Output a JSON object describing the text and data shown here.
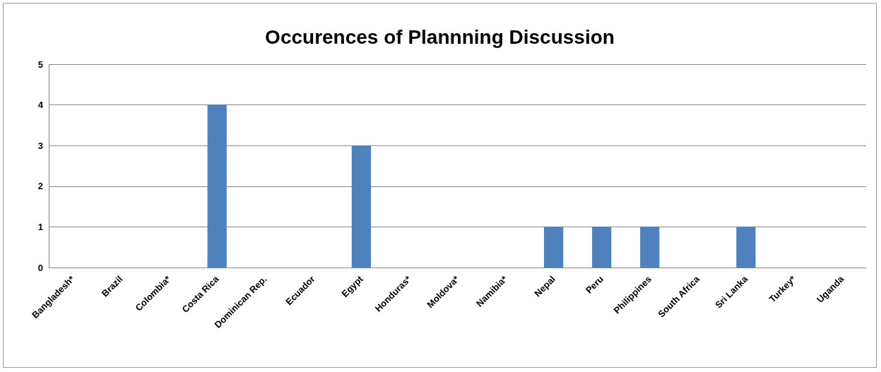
{
  "chart_data": {
    "type": "bar",
    "title": "Occurences of Plannning Discussion",
    "categories": [
      "Bangladesh*",
      "Brazil",
      "Colombia*",
      "Costa Rica",
      "Dominican Rep.",
      "Ecuador",
      "Egypt",
      "Honduras*",
      "Moldova*",
      "Namibia*",
      "Nepal",
      "Peru",
      "Philippines",
      "South Africa",
      "Sri Lanka",
      "Turkey*",
      "Uganda"
    ],
    "values": [
      0,
      0,
      0,
      4,
      0,
      0,
      3,
      0,
      0,
      0,
      1,
      1,
      1,
      0,
      1,
      0,
      0
    ],
    "color": "#4f81bd",
    "ylim": [
      0,
      5
    ],
    "yticks": [
      0,
      1,
      2,
      3,
      4,
      5
    ],
    "grid": "y"
  }
}
